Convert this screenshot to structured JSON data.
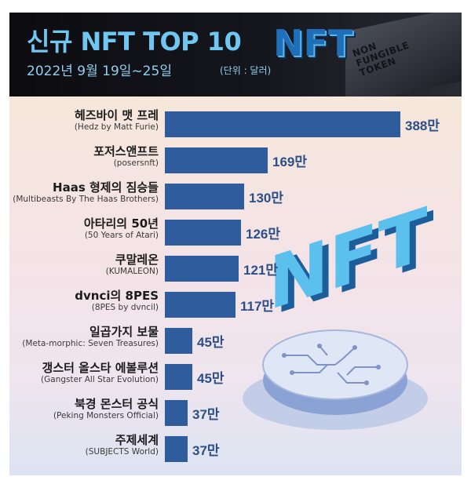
{
  "header": {
    "title": "신규 NFT TOP 10",
    "subtitle": "2022년 9월 19일~25일",
    "unit": "(단위 : 달러)",
    "badge_text": "NFT",
    "badge_lines": [
      "NON",
      "FUNGIBLE",
      "TOKEN"
    ]
  },
  "colors": {
    "bar": "#2e5c9c",
    "value_text": "#2b4f86",
    "title": "#6fc6f0"
  },
  "chart_data": {
    "type": "bar",
    "orientation": "horizontal",
    "categories": [
      {
        "ko": "헤즈바이 맷 프레",
        "en": "(Hedz by Matt Furie)"
      },
      {
        "ko": "포저스앤프트",
        "en": "(posersnft)"
      },
      {
        "ko": "Haas 형제의 짐승들",
        "en": "(Multibeasts By The Haas Brothers)"
      },
      {
        "ko": "아타리의 50년",
        "en": "(50 Years of Atari)"
      },
      {
        "ko": "쿠말레온",
        "en": "(KUMALEON)"
      },
      {
        "ko": "dvnci의 8PES",
        "en": "(8PES by dvncil)"
      },
      {
        "ko": "일곱가지 보물",
        "en": "(Meta-morphic: Seven Treasures)"
      },
      {
        "ko": "갱스터 올스타 에볼루션",
        "en": "(Gangster All Star Evolution)"
      },
      {
        "ko": "북경 몬스터 공식",
        "en": "(Peking Monsters Official)"
      },
      {
        "ko": "주제세계",
        "en": "(SUBJECTS World)"
      }
    ],
    "values": [
      3880000,
      1690000,
      1300000,
      1260000,
      1210000,
      1170000,
      450000,
      450000,
      370000,
      370000
    ],
    "value_labels": [
      "388만",
      "169만",
      "130만",
      "126만",
      "121만",
      "117만",
      "45만",
      "45만",
      "37만",
      "37만"
    ],
    "title": "신규 NFT TOP 10",
    "unit": "(단위 : 달러)"
  }
}
